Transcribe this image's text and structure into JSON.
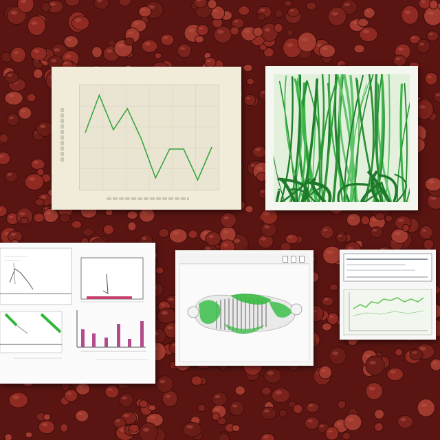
{
  "scene": {
    "background_color": "#5a1512",
    "pebble_colors": [
      "#8e2a22",
      "#7a221c",
      "#a03a2f",
      "#6a1c17"
    ],
    "accent_green": "#2f9e3a"
  },
  "line_chart_card": {
    "title": "",
    "y_ticks": [
      "",
      "",
      "",
      "",
      ""
    ],
    "x_ticks": [
      "",
      "",
      "",
      "",
      ""
    ],
    "series_values": [
      0.55,
      0.94,
      0.58,
      0.8,
      0.48,
      0.08,
      0.38,
      0.38,
      0.06,
      0.4
    ],
    "line_color": "#3aa540"
  },
  "plant_card": {
    "art": "green-stems-illustration"
  },
  "figure_card": {
    "panels": [
      "line-panel",
      "spike-panel",
      "diagonal-bars-panel",
      "bar-panel"
    ]
  },
  "render_card": {
    "subject": "green-3d-mechanism"
  },
  "small_plot_card": {
    "line_color": "#68c25a"
  }
}
